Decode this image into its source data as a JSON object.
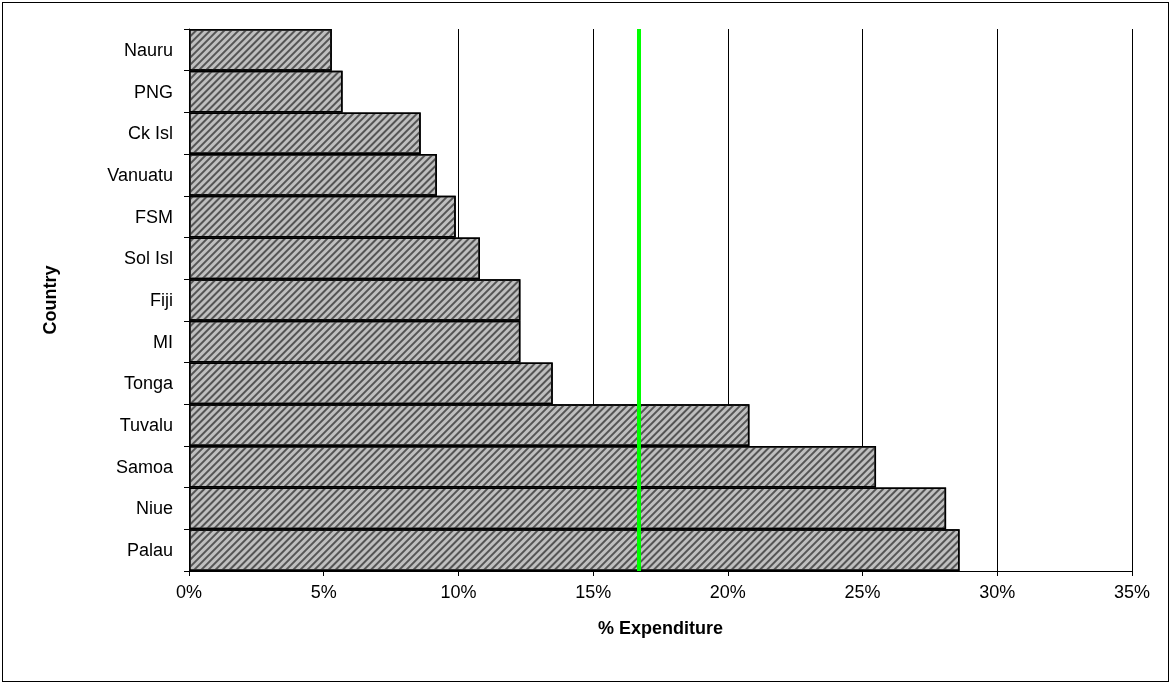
{
  "chart_data": {
    "type": "bar",
    "orientation": "horizontal",
    "xlabel": "% Expenditure",
    "ylabel": "Country",
    "categories": [
      "Nauru",
      "PNG",
      "Ck Isl",
      "Vanuatu",
      "FSM",
      "Sol Isl",
      "Fiji",
      "MI",
      "Tonga",
      "Tuvalu",
      "Samoa",
      "Niue",
      "Palau"
    ],
    "values": [
      5.3,
      5.7,
      8.6,
      9.2,
      9.9,
      10.8,
      12.3,
      12.3,
      13.5,
      20.8,
      25.5,
      28.1,
      28.6
    ],
    "color": "#bfbfbf",
    "xlim": [
      0,
      35
    ],
    "xticks": [
      {
        "value": 0,
        "label": "0%"
      },
      {
        "value": 5,
        "label": "5%"
      },
      {
        "value": 10,
        "label": "10%"
      },
      {
        "value": 15,
        "label": "15%"
      },
      {
        "value": 20,
        "label": "20%"
      },
      {
        "value": 25,
        "label": "25%"
      },
      {
        "value": 30,
        "label": "30%"
      },
      {
        "value": 35,
        "label": "35%"
      }
    ],
    "grid": "x",
    "ref_lines": [
      {
        "axis": "x",
        "value": 16.7,
        "color": "#00ff00"
      }
    ]
  }
}
